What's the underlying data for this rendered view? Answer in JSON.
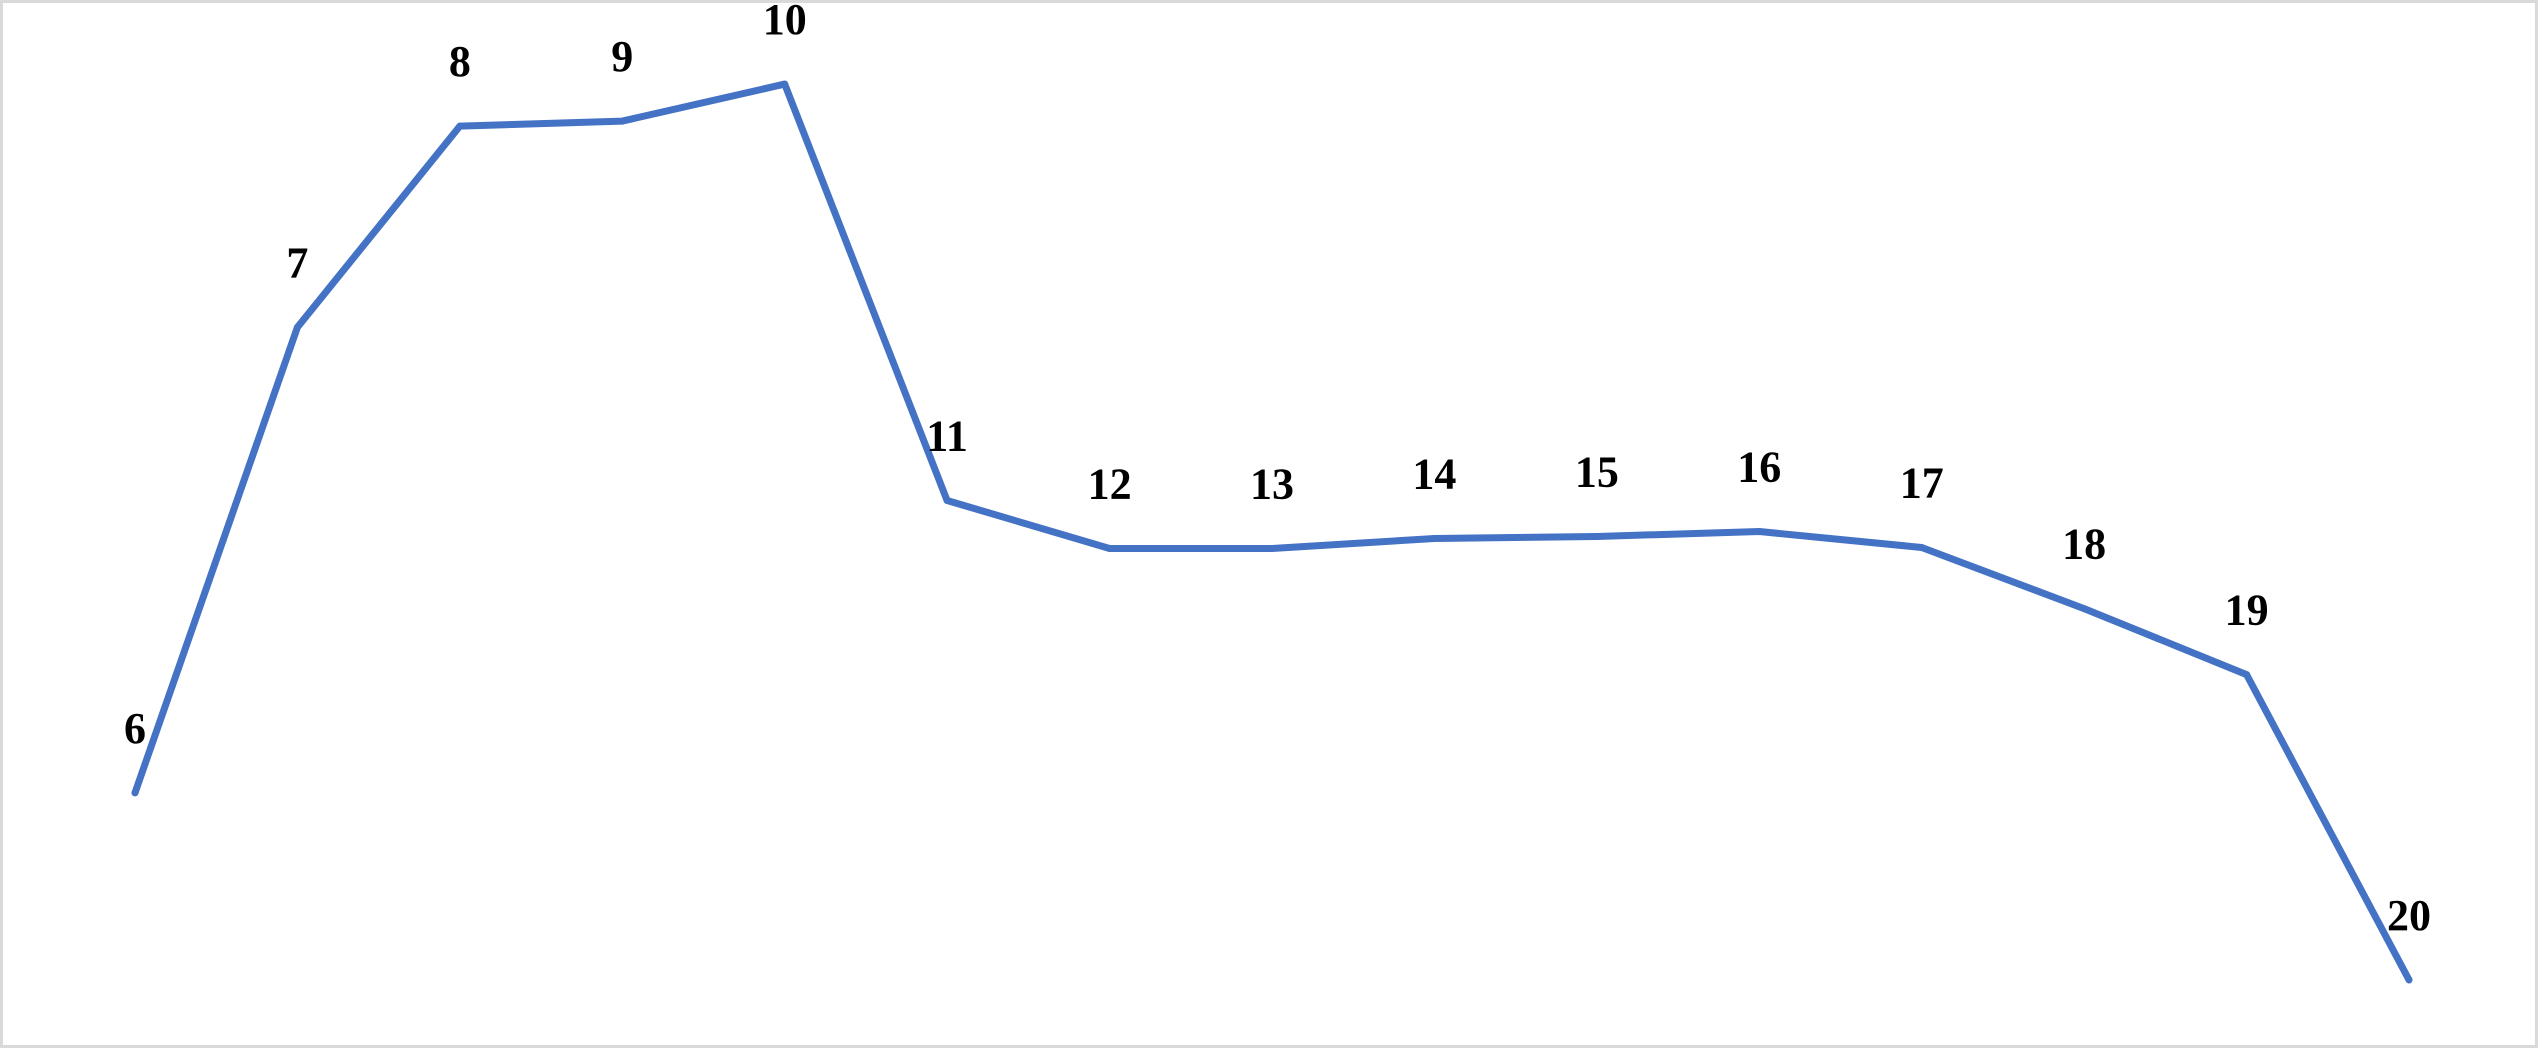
{
  "chart_data": {
    "type": "line",
    "title": "",
    "xlabel": "",
    "ylabel": "",
    "axes_visible": false,
    "grid": false,
    "legend": "none",
    "line_color": "#4472C4",
    "data_label_field": "x",
    "x": [
      6,
      7,
      8,
      9,
      10,
      11,
      12,
      13,
      14,
      15,
      16,
      17,
      18,
      19,
      20
    ],
    "series": [
      {
        "values": [
          24,
          70.5,
          90.6,
          91.1,
          94.8,
          53.2,
          48.4,
          48.4,
          49.4,
          49.6,
          50.1,
          48.5,
          42.4,
          35.8,
          5.3
        ]
      }
    ],
    "ylim": [
      0,
      100
    ]
  }
}
